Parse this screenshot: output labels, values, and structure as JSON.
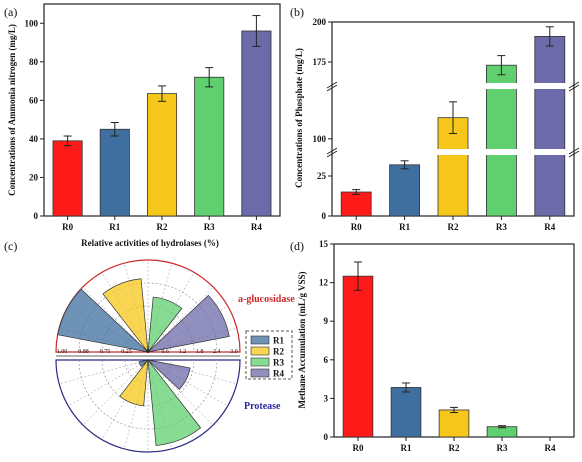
{
  "colors": {
    "R0": "#ff1a1a",
    "R1": "#3f6f9f",
    "R2": "#f5c71a",
    "R3": "#5fcf6f",
    "R4": "#6c6aa8",
    "glucosidase": "#cc2a2a",
    "protease": "#2a2aa0"
  },
  "chart_data": [
    {
      "panel": "(a)",
      "type": "bar",
      "categories": [
        "R0",
        "R1",
        "R2",
        "R3",
        "R4"
      ],
      "values": [
        39,
        45,
        63.5,
        72,
        96
      ],
      "errors": [
        2.5,
        3.5,
        4,
        5,
        8
      ],
      "ylabel": "Concentrations of Ammonia nitrogen (mg/L)",
      "ylim": [
        0,
        110
      ],
      "yticks": [
        "0",
        "20",
        "40",
        "60",
        "80",
        "100"
      ]
    },
    {
      "panel": "(b)",
      "type": "bar",
      "categories": [
        "R0",
        "R1",
        "R2",
        "R3",
        "R4"
      ],
      "values": [
        15,
        32,
        108,
        173,
        191
      ],
      "errors": [
        1.5,
        2.5,
        6,
        6,
        6
      ],
      "ylabel": "Concentrations of Phosphate (mg/L)",
      "y_axis_breaks": [
        [
          40,
          95
        ],
        [
          120,
          160
        ]
      ],
      "ylim": [
        0,
        200
      ],
      "yticks": [
        "0",
        "25",
        "100",
        "175",
        "200"
      ]
    },
    {
      "panel": "(c)",
      "type": "rose",
      "title": "Relative activities of hydrolases (%)",
      "series": [
        {
          "name": "R1",
          "glucosidase": 1.0,
          "protease": 0.3
        },
        {
          "name": "R2",
          "glucosidase": 0.8,
          "protease": 1.5
        },
        {
          "name": "R3",
          "glucosidase": 0.6,
          "protease": 2.8
        },
        {
          "name": "R4",
          "glucosidase": 0.9,
          "protease": 1.4
        }
      ],
      "upper_label": "a-glucosidase",
      "lower_label": "Protease",
      "upper_scale_ticks": [
        "1.00",
        "0.88",
        "0.75",
        "0.25",
        "0"
      ],
      "lower_scale_ticks": [
        "0",
        "0.6",
        "1.2",
        "1.8",
        "2.4",
        "3.0"
      ]
    },
    {
      "panel": "(d)",
      "type": "bar",
      "categories": [
        "R0",
        "R1",
        "R2",
        "R3",
        "R4"
      ],
      "values": [
        12.5,
        3.85,
        2.1,
        0.8,
        0
      ],
      "errors": [
        1.1,
        0.35,
        0.2,
        0.08,
        0
      ],
      "ylabel": "Methane Accumulation (mL/g VSS)",
      "ylim": [
        0,
        15
      ],
      "yticks": [
        "0",
        "3",
        "6",
        "9",
        "12",
        "15"
      ]
    }
  ]
}
